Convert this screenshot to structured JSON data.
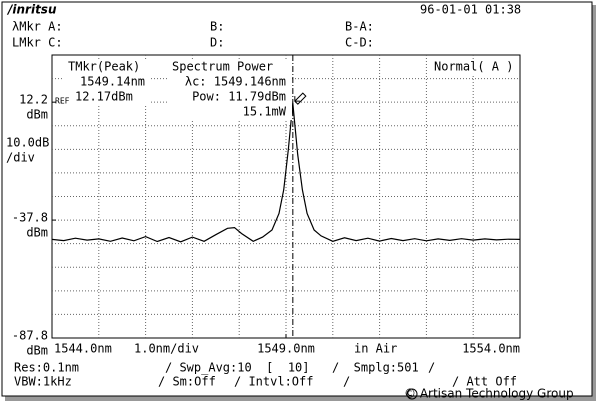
{
  "header": {
    "logo": "/inritsu",
    "datetime": "96-01-01 01:38",
    "row1": [
      "λMkr A:",
      "B:",
      "B-A:"
    ],
    "row2": [
      "LMkr C:",
      "D:",
      "C-D:"
    ]
  },
  "readouts": {
    "tmkr_title": "TMkr(Peak)",
    "tmkr_wavelength": "1549.14nm",
    "tmkr_level": "12.17dBm",
    "ref": "REF",
    "sp_title": "Spectrum Power",
    "sp_center": "λc: 1549.146nm",
    "sp_power": "Pow: 11.79dBm",
    "sp_mw": "15.1mW",
    "mode": "Normal( A )"
  },
  "footer": {
    "row1": [
      "Res:0.1nm",
      "/ Swp_Avg:10  [  10]",
      "/  Smplg:501",
      "/"
    ],
    "row2": [
      "VBW:1kHz",
      "/ Sm:Off",
      "/ Intvl:Off",
      "/",
      "/ Att Off"
    ],
    "watermark": "© Artisan Technology Group"
  },
  "chart_data": {
    "type": "line",
    "color": "#000000",
    "x": [
      1544.0,
      1544.25,
      1544.5,
      1544.75,
      1545.0,
      1545.25,
      1545.5,
      1545.75,
      1546.0,
      1546.25,
      1546.5,
      1546.75,
      1547.0,
      1547.25,
      1547.5,
      1547.75,
      1547.9,
      1548.05,
      1548.3,
      1548.5,
      1548.7,
      1548.85,
      1548.95,
      1549.05,
      1549.146,
      1549.25,
      1549.35,
      1549.45,
      1549.6,
      1549.75,
      1550.0,
      1550.25,
      1550.5,
      1550.75,
      1551.0,
      1551.25,
      1551.5,
      1551.75,
      1552.0,
      1552.25,
      1552.5,
      1552.75,
      1553.0,
      1553.25,
      1553.5,
      1553.75,
      1554.0
    ],
    "values": [
      -46.0,
      -46.5,
      -45.5,
      -46.3,
      -45.8,
      -46.8,
      -45.4,
      -46.6,
      -44.8,
      -46.9,
      -45.2,
      -47.0,
      -45.0,
      -46.8,
      -44.0,
      -41.3,
      -41.0,
      -43.5,
      -46.8,
      -45.0,
      -42.0,
      -35.0,
      -25.0,
      -8.0,
      11.79,
      -10.0,
      -25.0,
      -35.0,
      -42.0,
      -44.5,
      -46.8,
      -45.3,
      -46.5,
      -45.5,
      -46.7,
      -45.6,
      -46.5,
      -45.7,
      -46.6,
      -45.8,
      -46.4,
      -45.7,
      -46.3,
      -45.8,
      -46.2,
      -45.9,
      -46.0
    ],
    "xlim": [
      1544,
      1554
    ],
    "ylim": [
      -87.8,
      32.2
    ],
    "xticks": [
      {
        "value": 1544,
        "label": "1544.0nm"
      },
      {
        "value": 1549,
        "label": "1549.0nm"
      },
      {
        "value": 1554,
        "label": "1554.0nm"
      }
    ],
    "yticks": [
      12.2,
      -37.8,
      -87.8
    ],
    "y_unit": "dBm",
    "scale_label": [
      "10.0dB",
      "/div"
    ],
    "span_label": "1.0nm/div",
    "medium_label": "in Air",
    "marker_x": 1549.146,
    "grid": true
  }
}
